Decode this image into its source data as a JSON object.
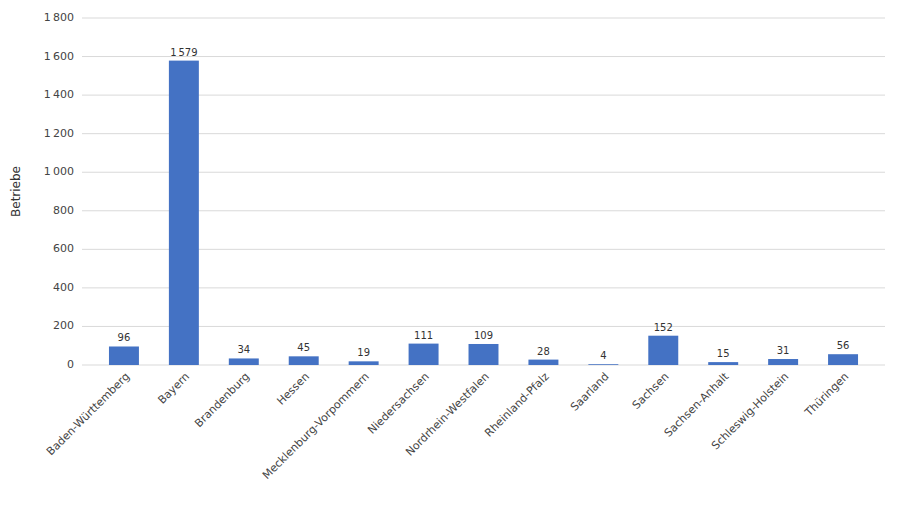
{
  "chart_data": {
    "type": "bar",
    "categories": [
      "Baden-Württemberg",
      "Bayern",
      "Brandenburg",
      "Hessen",
      "Mecklenburg-Vorpommern",
      "Niedersachsen",
      "Nordrhein-Westfalen",
      "Rheinland-Pfalz",
      "Saarland",
      "Sachsen",
      "Sachsen-Anhalt",
      "Schleswig-Holstein",
      "Thüringen"
    ],
    "values": [
      96,
      1579,
      34,
      45,
      19,
      111,
      109,
      28,
      4,
      152,
      15,
      31,
      56
    ],
    "value_labels": [
      "96",
      "1 579",
      "34",
      "45",
      "19",
      "111",
      "109",
      "28",
      "4",
      "152",
      "15",
      "31",
      "56"
    ],
    "color": "#4472C4",
    "ylabel": "Betriebe",
    "ylim": [
      0,
      1800
    ],
    "yticks": [
      0,
      200,
      400,
      600,
      800,
      {
        "value": 1000,
        "label": "1 000"
      },
      {
        "value": 1200,
        "label": "1 200"
      },
      {
        "value": 1400,
        "label": "1 400"
      },
      {
        "value": 1600,
        "label": "1 600"
      },
      {
        "value": 1800,
        "label": "1 800"
      }
    ],
    "grid": true,
    "data_labels": true
  }
}
